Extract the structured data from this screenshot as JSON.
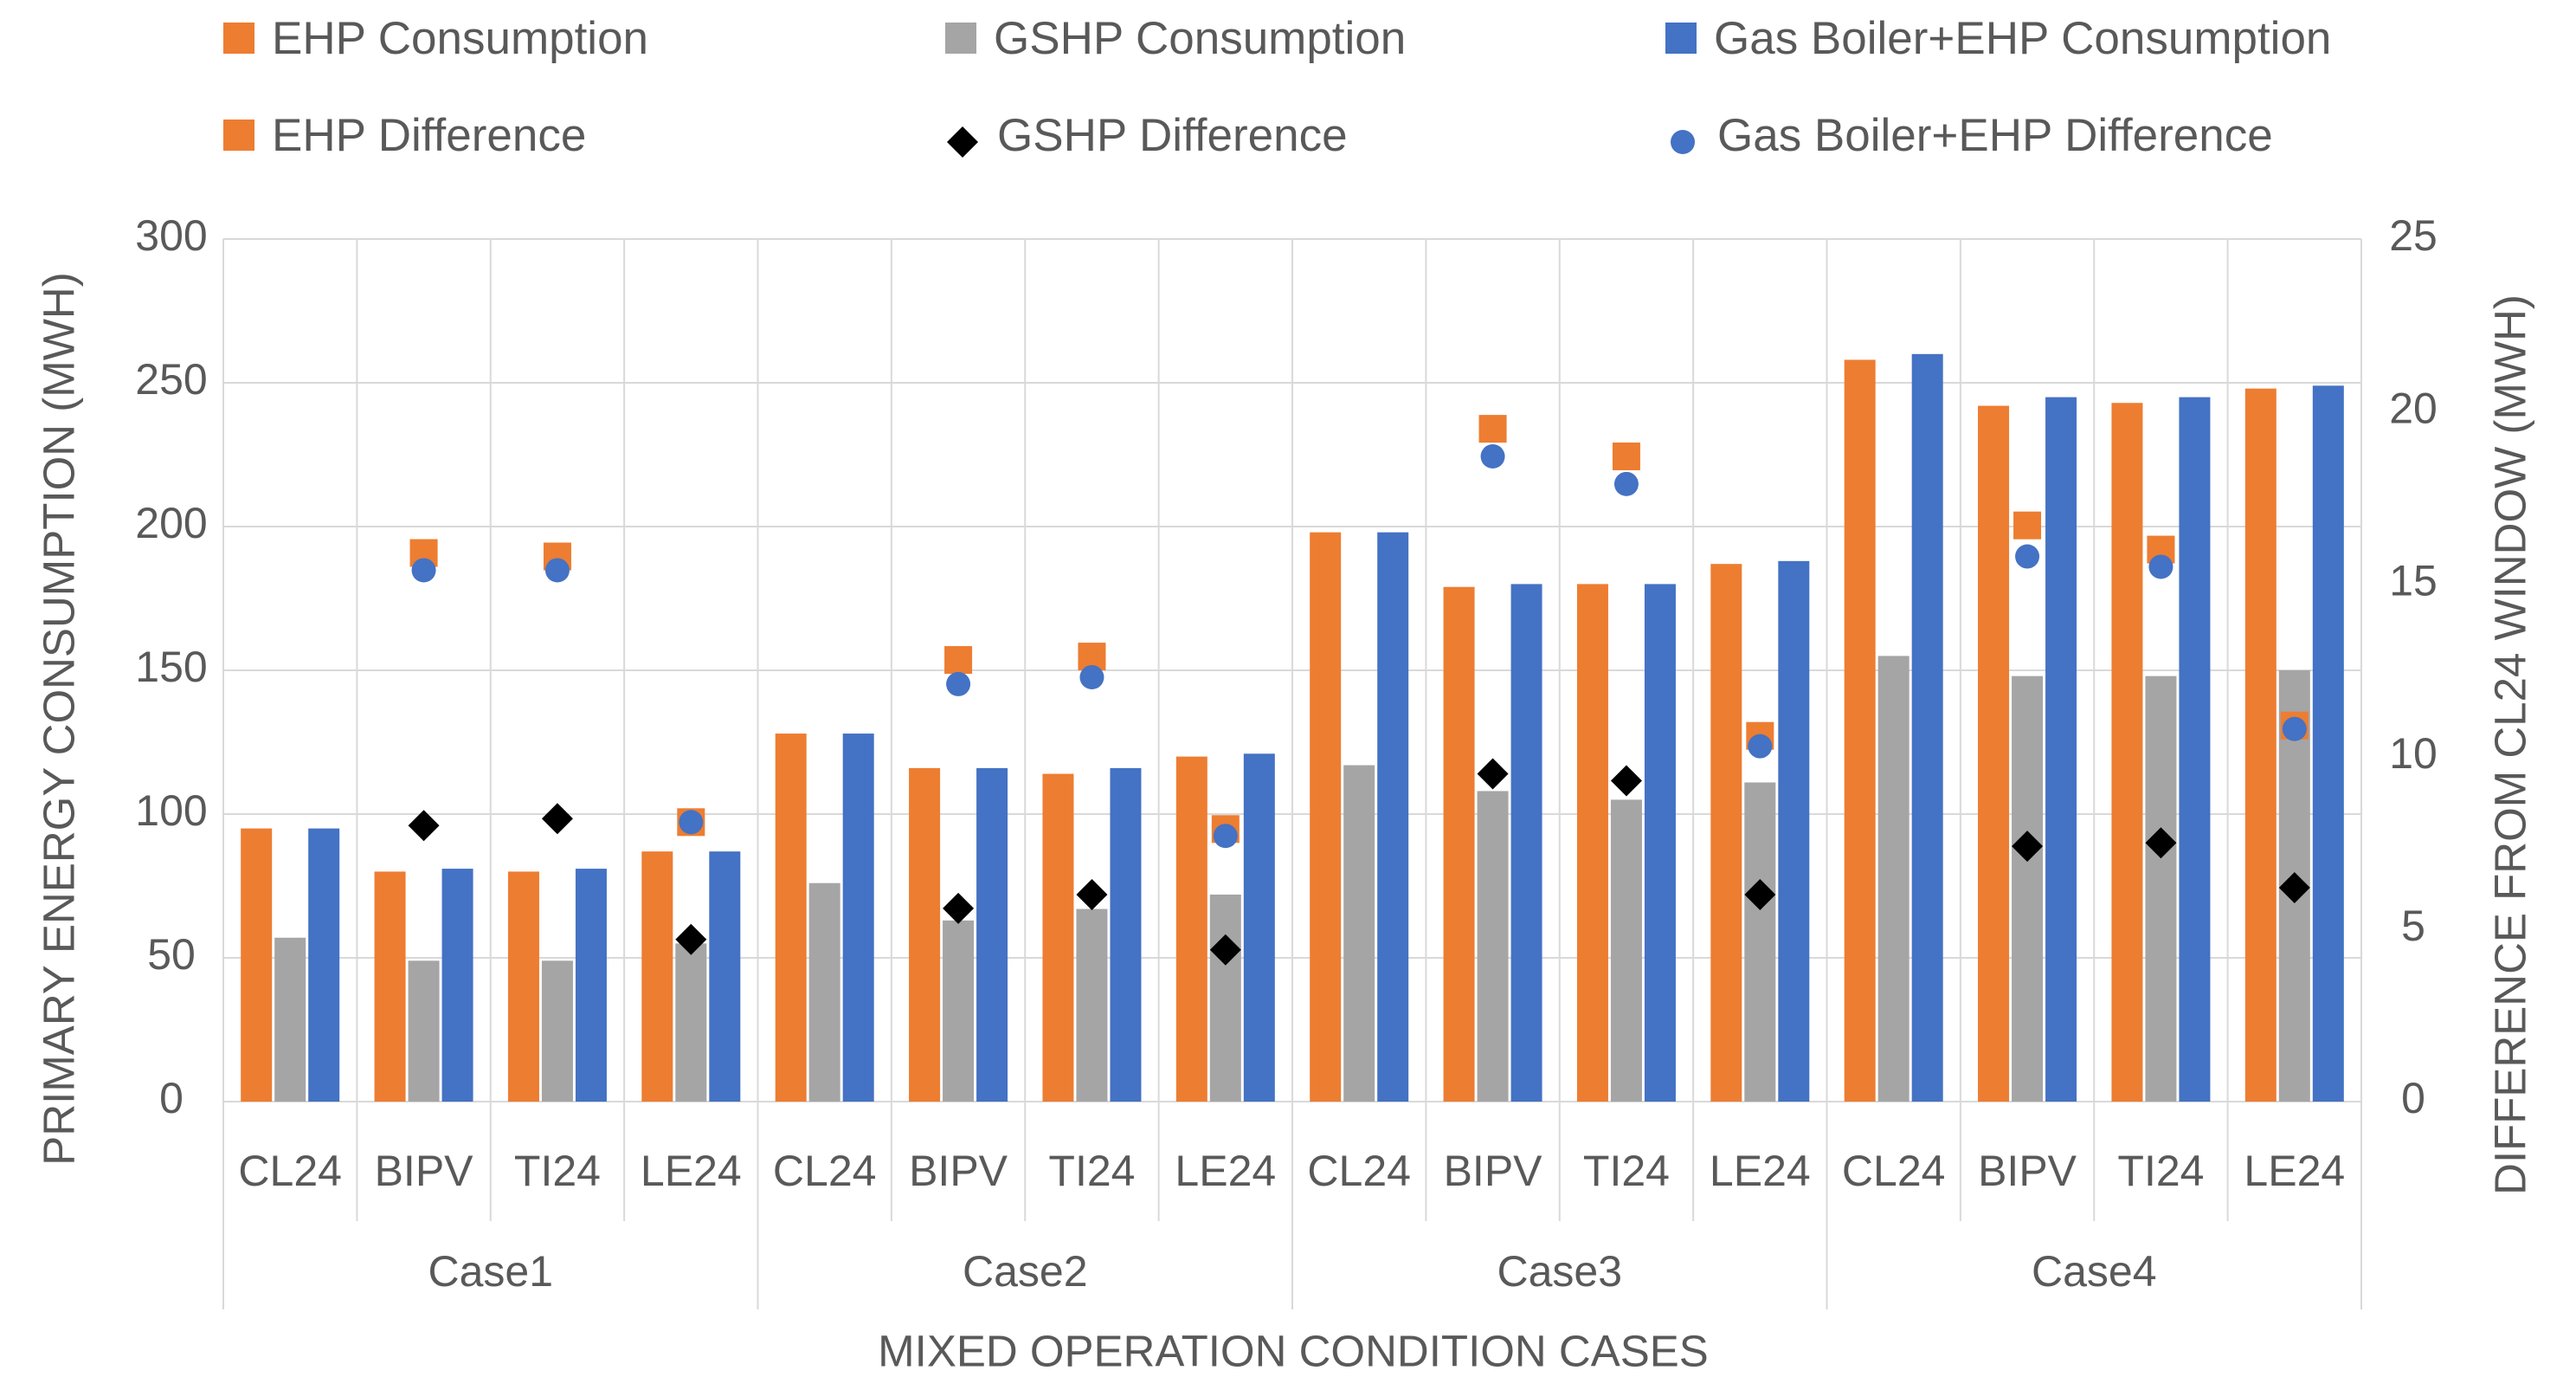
{
  "chart_data": {
    "type": "bar",
    "title": "",
    "xlabel": "MIXED OPERATION CONDITION CASES",
    "ylabel": "PRIMARY ENERGY CONSUMPTION (MWH)",
    "y2label": "DIFFERENCE FROM CL24 WINDOW (MWH)",
    "ylim": [
      0,
      300
    ],
    "y2lim": [
      0,
      25
    ],
    "yticks": [
      "0",
      "50",
      "100",
      "150",
      "200",
      "250",
      "300"
    ],
    "y2ticks": [
      "0",
      "5",
      "10",
      "15",
      "20",
      "25"
    ],
    "grid": true,
    "legend_position": "top",
    "groups": [
      "Case1",
      "Case2",
      "Case3",
      "Case4"
    ],
    "categories": [
      "CL24",
      "BIPV",
      "TI24",
      "LE24",
      "CL24",
      "BIPV",
      "TI24",
      "LE24",
      "CL24",
      "BIPV",
      "TI24",
      "LE24",
      "CL24",
      "BIPV",
      "TI24",
      "LE24"
    ],
    "series": [
      {
        "name": "EHP Consumption",
        "kind": "bar",
        "axis": "left",
        "color": "#ED7D31",
        "marker": "square",
        "values": [
          95,
          80,
          80,
          87,
          128,
          116,
          114,
          120,
          198,
          179,
          180,
          187,
          258,
          242,
          243,
          248
        ]
      },
      {
        "name": "GSHP Consumption",
        "kind": "bar",
        "axis": "left",
        "color": "#A5A5A5",
        "marker": "square",
        "values": [
          57,
          49,
          49,
          55,
          76,
          63,
          67,
          72,
          117,
          108,
          105,
          111,
          155,
          148,
          148,
          150
        ]
      },
      {
        "name": "Gas Boiler+EHP Consumption",
        "kind": "bar",
        "axis": "left",
        "color": "#4472C4",
        "marker": "square",
        "values": [
          95,
          81,
          81,
          87,
          128,
          116,
          116,
          121,
          198,
          180,
          180,
          188,
          260,
          245,
          245,
          249
        ]
      },
      {
        "name": "EHP Difference",
        "kind": "point",
        "axis": "right",
        "color": "#ED7D31",
        "marker": "square",
        "values": [
          null,
          15.9,
          15.8,
          8.1,
          null,
          12.8,
          12.9,
          7.9,
          null,
          19.5,
          18.7,
          10.6,
          null,
          16.7,
          16.0,
          10.9
        ]
      },
      {
        "name": "GSHP Difference",
        "kind": "point",
        "axis": "right",
        "color": "#000000",
        "marker": "diamond",
        "values": [
          null,
          8.0,
          8.2,
          4.7,
          null,
          5.6,
          6.0,
          4.4,
          null,
          9.5,
          9.3,
          6.0,
          null,
          7.4,
          7.5,
          6.2
        ]
      },
      {
        "name": "Gas Boiler+EHP Difference",
        "kind": "point",
        "axis": "right",
        "color": "#4472C4",
        "marker": "circle",
        "values": [
          null,
          15.4,
          15.4,
          8.1,
          null,
          12.1,
          12.3,
          7.7,
          null,
          18.7,
          17.9,
          10.3,
          null,
          15.8,
          15.5,
          10.8
        ]
      }
    ]
  }
}
